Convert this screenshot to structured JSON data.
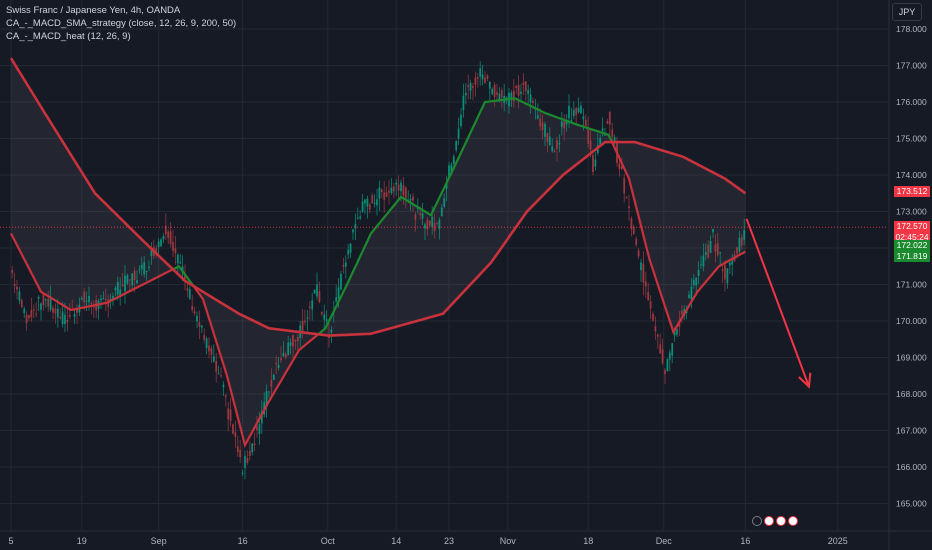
{
  "header": {
    "title": "Swiss Franc / Japanese Yen, 4h, OANDA",
    "indicator1": "CA_-_MACD_SMA_strategy (close, 12, 26, 9, 200, 50)",
    "indicator2": "CA_-_MACD_heat (12, 26, 9)"
  },
  "currency_button": "JPY",
  "price_tags": {
    "sma200": {
      "value": "173.512",
      "color": "#f23645"
    },
    "last": {
      "value": "172.570",
      "countdown": "02:45:24",
      "color": "#f23645"
    },
    "sma50_a": {
      "value": "172.022",
      "color": "#1b8a2e"
    },
    "sma50_b": {
      "value": "171.819",
      "color": "#1b8a2e"
    }
  },
  "chart_data": {
    "type": "line",
    "ylim": [
      164.5,
      178.5
    ],
    "y_ticks": [
      165,
      166,
      167,
      168,
      169,
      170,
      171,
      172,
      173,
      174,
      175,
      176,
      177,
      178
    ],
    "y_tick_labels": [
      "165.000",
      "166.000",
      "167.000",
      "168.000",
      "169.000",
      "170.000",
      "171.000",
      "172.000",
      "173.000",
      "174.000",
      "175.000",
      "176.000",
      "177.000",
      "178.000"
    ],
    "x_ticks": [
      {
        "label": "5",
        "bar": 0
      },
      {
        "label": "19",
        "bar": 59
      },
      {
        "label": "Sep",
        "bar": 123
      },
      {
        "label": "16",
        "bar": 193
      },
      {
        "label": "Oct",
        "bar": 264
      },
      {
        "label": "14",
        "bar": 321
      },
      {
        "label": "23",
        "bar": 365
      },
      {
        "label": "Nov",
        "bar": 414
      },
      {
        "label": "18",
        "bar": 481
      },
      {
        "label": "Dec",
        "bar": 544
      },
      {
        "label": "16",
        "bar": 612
      },
      {
        "label": "2025",
        "bar": 689
      }
    ],
    "price_keypoints": [
      {
        "bar": 0,
        "price": 171.4
      },
      {
        "bar": 12,
        "price": 170.1
      },
      {
        "bar": 28,
        "price": 170.6
      },
      {
        "bar": 45,
        "price": 170.0
      },
      {
        "bar": 60,
        "price": 170.6
      },
      {
        "bar": 75,
        "price": 170.4
      },
      {
        "bar": 90,
        "price": 170.9
      },
      {
        "bar": 110,
        "price": 171.4
      },
      {
        "bar": 130,
        "price": 172.6
      },
      {
        "bar": 140,
        "price": 171.6
      },
      {
        "bar": 160,
        "price": 169.6
      },
      {
        "bar": 175,
        "price": 168.3
      },
      {
        "bar": 193,
        "price": 165.9
      },
      {
        "bar": 205,
        "price": 167.0
      },
      {
        "bar": 222,
        "price": 168.9
      },
      {
        "bar": 240,
        "price": 169.7
      },
      {
        "bar": 255,
        "price": 170.8
      },
      {
        "bar": 265,
        "price": 169.6
      },
      {
        "bar": 275,
        "price": 171.2
      },
      {
        "bar": 290,
        "price": 173.0
      },
      {
        "bar": 305,
        "price": 173.4
      },
      {
        "bar": 325,
        "price": 173.8
      },
      {
        "bar": 340,
        "price": 172.8
      },
      {
        "bar": 355,
        "price": 172.6
      },
      {
        "bar": 368,
        "price": 174.5
      },
      {
        "bar": 378,
        "price": 176.2
      },
      {
        "bar": 392,
        "price": 176.8
      },
      {
        "bar": 400,
        "price": 176.4
      },
      {
        "bar": 414,
        "price": 176.1
      },
      {
        "bar": 428,
        "price": 176.4
      },
      {
        "bar": 440,
        "price": 175.6
      },
      {
        "bar": 452,
        "price": 174.6
      },
      {
        "bar": 462,
        "price": 175.6
      },
      {
        "bar": 475,
        "price": 175.9
      },
      {
        "bar": 485,
        "price": 174.3
      },
      {
        "bar": 498,
        "price": 175.6
      },
      {
        "bar": 510,
        "price": 173.8
      },
      {
        "bar": 520,
        "price": 172.1
      },
      {
        "bar": 532,
        "price": 170.6
      },
      {
        "bar": 545,
        "price": 168.7
      },
      {
        "bar": 558,
        "price": 170.1
      },
      {
        "bar": 572,
        "price": 171.2
      },
      {
        "bar": 585,
        "price": 172.3
      },
      {
        "bar": 596,
        "price": 171.2
      },
      {
        "bar": 605,
        "price": 172.0
      },
      {
        "bar": 612,
        "price": 172.5
      }
    ],
    "sma200_keypoints": [
      {
        "bar": 0,
        "price": 177.2
      },
      {
        "bar": 30,
        "price": 175.6
      },
      {
        "bar": 70,
        "price": 173.5
      },
      {
        "bar": 110,
        "price": 172.2
      },
      {
        "bar": 145,
        "price": 171.1
      },
      {
        "bar": 190,
        "price": 170.2
      },
      {
        "bar": 215,
        "price": 169.8
      },
      {
        "bar": 265,
        "price": 169.6
      },
      {
        "bar": 300,
        "price": 169.65
      },
      {
        "bar": 360,
        "price": 170.2
      },
      {
        "bar": 400,
        "price": 171.6
      },
      {
        "bar": 430,
        "price": 173.0
      },
      {
        "bar": 460,
        "price": 174.0
      },
      {
        "bar": 495,
        "price": 174.9
      },
      {
        "bar": 520,
        "price": 174.9
      },
      {
        "bar": 560,
        "price": 174.5
      },
      {
        "bar": 595,
        "price": 173.9
      },
      {
        "bar": 612,
        "price": 173.5
      }
    ],
    "sma50_keypoints": [
      {
        "bar": 0,
        "price": 172.4
      },
      {
        "bar": 25,
        "price": 170.8
      },
      {
        "bar": 50,
        "price": 170.3
      },
      {
        "bar": 80,
        "price": 170.5
      },
      {
        "bar": 110,
        "price": 171.0
      },
      {
        "bar": 140,
        "price": 171.5
      },
      {
        "bar": 160,
        "price": 170.6
      },
      {
        "bar": 180,
        "price": 168.5
      },
      {
        "bar": 195,
        "price": 166.6
      },
      {
        "bar": 215,
        "price": 167.8
      },
      {
        "bar": 240,
        "price": 169.2
      },
      {
        "bar": 262,
        "price": 169.8
      },
      {
        "bar": 280,
        "price": 171.0
      },
      {
        "bar": 300,
        "price": 172.4
      },
      {
        "bar": 325,
        "price": 173.4
      },
      {
        "bar": 350,
        "price": 172.9
      },
      {
        "bar": 372,
        "price": 174.4
      },
      {
        "bar": 395,
        "price": 176.0
      },
      {
        "bar": 420,
        "price": 176.1
      },
      {
        "bar": 445,
        "price": 175.7
      },
      {
        "bar": 470,
        "price": 175.4
      },
      {
        "bar": 498,
        "price": 175.1
      },
      {
        "bar": 515,
        "price": 173.9
      },
      {
        "bar": 532,
        "price": 171.7
      },
      {
        "bar": 552,
        "price": 169.7
      },
      {
        "bar": 572,
        "price": 170.8
      },
      {
        "bar": 590,
        "price": 171.5
      },
      {
        "bar": 612,
        "price": 171.9
      }
    ],
    "arrow": {
      "from": {
        "bar": 613,
        "price": 172.8
      },
      "to": {
        "bar": 665,
        "price": 168.2
      },
      "color": "#f23645"
    }
  }
}
